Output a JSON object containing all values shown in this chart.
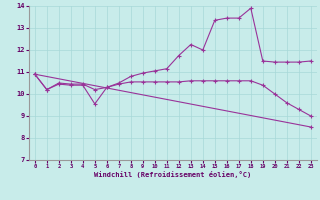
{
  "xlabel": "Windchill (Refroidissement éolien,°C)",
  "xlim": [
    -0.5,
    23.5
  ],
  "ylim": [
    7,
    14
  ],
  "yticks": [
    7,
    8,
    9,
    10,
    11,
    12,
    13,
    14
  ],
  "xticks": [
    0,
    1,
    2,
    3,
    4,
    5,
    6,
    7,
    8,
    9,
    10,
    11,
    12,
    13,
    14,
    15,
    16,
    17,
    18,
    19,
    20,
    21,
    22,
    23
  ],
  "bg_color": "#c8ecea",
  "grid_color": "#a8d8d8",
  "line_color": "#993399",
  "line1_x": [
    0,
    1,
    2,
    3,
    4,
    5,
    6,
    7,
    8,
    9,
    10,
    11,
    12,
    13,
    14,
    15,
    16,
    17,
    18,
    19,
    20,
    21,
    22,
    23
  ],
  "line1_y": [
    10.9,
    10.2,
    10.5,
    10.45,
    10.45,
    10.2,
    10.3,
    10.5,
    10.8,
    10.95,
    11.05,
    11.15,
    11.75,
    12.25,
    12.0,
    13.35,
    13.45,
    13.45,
    13.9,
    11.5,
    11.45,
    11.45,
    11.45,
    11.5
  ],
  "line2_x": [
    0,
    1,
    2,
    3,
    4,
    5,
    6,
    7,
    8,
    9,
    10,
    11,
    12,
    13,
    14,
    15,
    16,
    17,
    18,
    19,
    20,
    21,
    22,
    23
  ],
  "line2_y": [
    10.9,
    10.2,
    10.45,
    10.4,
    10.4,
    9.55,
    10.3,
    10.45,
    10.55,
    10.55,
    10.55,
    10.55,
    10.55,
    10.6,
    10.6,
    10.6,
    10.6,
    10.6,
    10.6,
    10.4,
    10.0,
    9.6,
    9.3,
    9.0
  ],
  "line3_x": [
    0,
    23
  ],
  "line3_y": [
    10.9,
    8.5
  ]
}
